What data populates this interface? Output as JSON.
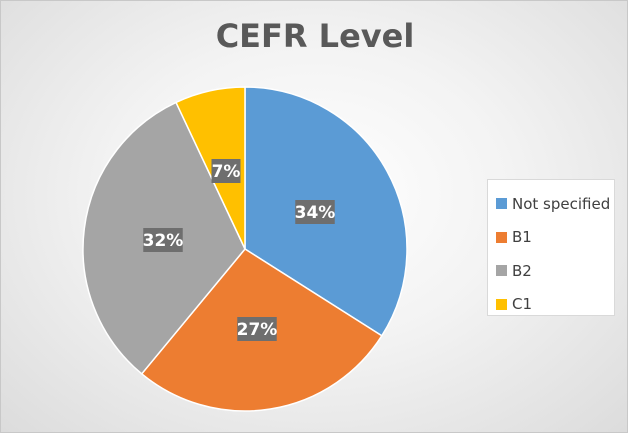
{
  "chart_data": {
    "type": "pie",
    "title": "CEFR Level",
    "categories": [
      "Not specified",
      "B1",
      "B2",
      "C1"
    ],
    "values": [
      34,
      27,
      32,
      7
    ],
    "data_labels": [
      "34%",
      "27%",
      "32%",
      "7%"
    ],
    "colors": [
      "#5b9bd5",
      "#ed7d31",
      "#a5a5a5",
      "#ffc000"
    ],
    "start_angle_deg": 0,
    "direction": "clockwise",
    "legend_position": "right"
  }
}
